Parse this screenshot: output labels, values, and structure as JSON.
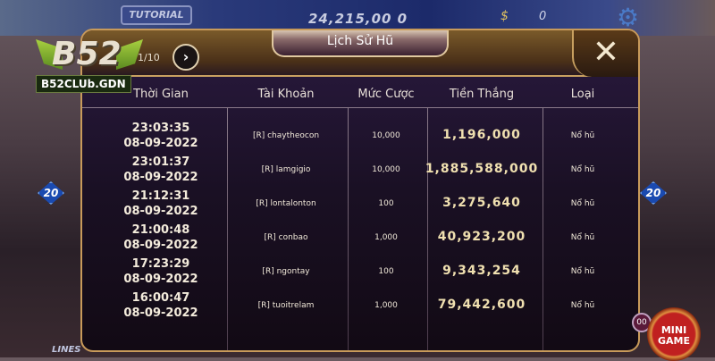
{
  "background": {
    "tutorial_label": "TUTORIAL",
    "balance": "24,215,00 0",
    "coin_value": "0",
    "side_badge": "20",
    "lines_label": "LINES"
  },
  "logo": {
    "text": "B52",
    "url": "B52CLUb.GDN"
  },
  "dialog": {
    "title": "Lịch Sử Hũ",
    "pager": "1/10",
    "columns": [
      "Thời Gian",
      "Tài Khoản",
      "Mức Cược",
      "Tiền Thắng",
      "Loại"
    ],
    "rows": [
      {
        "time": "23:03:35",
        "date": "08-09-2022",
        "account": "[R] chaytheocon",
        "bet": "10,000",
        "win": "1,196,000",
        "type": "Nổ hũ"
      },
      {
        "time": "23:01:37",
        "date": "08-09-2022",
        "account": "[R] lamgigio",
        "bet": "10,000",
        "win": "1,885,588,000",
        "type": "Nổ hũ"
      },
      {
        "time": "21:12:31",
        "date": "08-09-2022",
        "account": "[R] lontalonton",
        "bet": "100",
        "win": "3,275,640",
        "type": "Nổ hũ"
      },
      {
        "time": "21:00:48",
        "date": "08-09-2022",
        "account": "[R] conbao",
        "bet": "1,000",
        "win": "40,923,200",
        "type": "Nổ hũ"
      },
      {
        "time": "17:23:29",
        "date": "08-09-2022",
        "account": "[R] ngontay",
        "bet": "100",
        "win": "9,343,254",
        "type": "Nổ hũ"
      },
      {
        "time": "16:00:47",
        "date": "08-09-2022",
        "account": "[R] tuoitrelam",
        "bet": "1,000",
        "win": "79,442,600",
        "type": "Nổ hũ"
      }
    ]
  },
  "mini_game": {
    "label_line1": "MINI",
    "label_line2": "GAME",
    "badge": "00"
  },
  "icons": {
    "close": "close-icon",
    "next": "chevron-right-icon",
    "settings": "gear-icon"
  }
}
